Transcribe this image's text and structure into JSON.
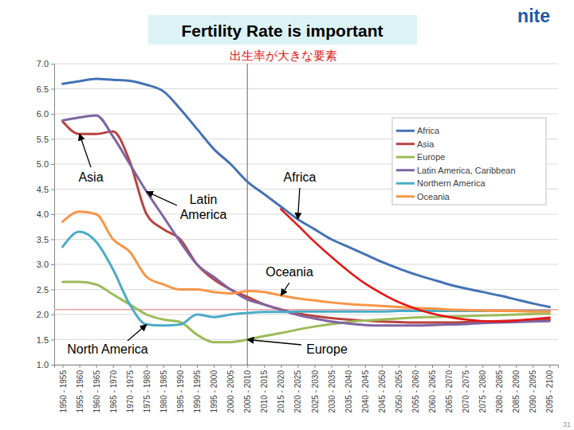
{
  "chart_data": {
    "type": "line",
    "title": "Fertility Rate is important",
    "subtitle": "出生率が大きな要素",
    "categories": [
      "1950 - 1955",
      "1955 - 1960",
      "1960 - 1965",
      "1965 - 1970",
      "1970 - 1975",
      "1975 - 1980",
      "1980 - 1985",
      "1985 - 1990",
      "1990 - 1995",
      "1995 - 2000",
      "2000 - 2005",
      "2005 - 2010",
      "2010 - 2015",
      "2015 - 2020",
      "2020 - 2025",
      "2025 - 2030",
      "2030 - 2035",
      "2035 - 2040",
      "2040 - 2045",
      "2045 - 2050",
      "2050 - 2055",
      "2055 - 2060",
      "2060 - 2065",
      "2065 - 2070",
      "2070 - 2075",
      "2075 - 2080",
      "2080 - 2085",
      "2085 - 2090",
      "2090 - 2095",
      "2095 - 2100"
    ],
    "series": [
      {
        "name": "Africa",
        "color": "#4472b4",
        "values": [
          6.6,
          6.65,
          6.7,
          6.68,
          6.66,
          6.58,
          6.45,
          6.1,
          5.7,
          5.3,
          5.0,
          4.65,
          4.4,
          4.15,
          3.9,
          3.7,
          3.5,
          3.35,
          3.2,
          3.05,
          2.92,
          2.8,
          2.7,
          2.6,
          2.52,
          2.45,
          2.38,
          2.3,
          2.22,
          2.15
        ]
      },
      {
        "name": "Asia",
        "color": "#b8433f",
        "values": [
          5.85,
          5.6,
          5.6,
          5.65,
          5.05,
          4.0,
          3.7,
          3.5,
          3.0,
          2.7,
          2.5,
          2.35,
          2.2,
          2.1,
          2.02,
          1.97,
          1.93,
          1.9,
          1.88,
          1.86,
          1.85,
          1.84,
          1.84,
          1.84,
          1.85,
          1.86,
          1.87,
          1.88,
          1.89,
          1.9
        ]
      },
      {
        "name": "Europe",
        "color": "#9bbb59",
        "values": [
          2.65,
          2.65,
          2.6,
          2.4,
          2.2,
          2.0,
          1.9,
          1.85,
          1.6,
          1.45,
          1.45,
          1.5,
          1.57,
          1.63,
          1.7,
          1.76,
          1.81,
          1.85,
          1.88,
          1.9,
          1.92,
          1.94,
          1.95,
          1.96,
          1.97,
          1.98,
          1.99,
          2.0,
          2.01,
          2.02
        ]
      },
      {
        "name": "Latin America, Caribbean",
        "color": "#8064a2",
        "values": [
          5.87,
          5.93,
          5.97,
          5.55,
          5.0,
          4.45,
          3.95,
          3.45,
          3.0,
          2.75,
          2.5,
          2.3,
          2.2,
          2.09,
          1.99,
          1.92,
          1.86,
          1.82,
          1.79,
          1.78,
          1.78,
          1.78,
          1.79,
          1.8,
          1.81,
          1.83,
          1.84,
          1.85,
          1.86,
          1.87
        ]
      },
      {
        "name": "Northern America",
        "color": "#4bacc6",
        "values": [
          3.35,
          3.65,
          3.45,
          2.9,
          2.2,
          1.8,
          1.78,
          1.8,
          2.0,
          1.95,
          2.0,
          2.03,
          2.05,
          2.05,
          2.06,
          2.06,
          2.06,
          2.06,
          2.06,
          2.06,
          2.07,
          2.07,
          2.07,
          2.07,
          2.07,
          2.07,
          2.07,
          2.07,
          2.07,
          2.07
        ]
      },
      {
        "name": "Oceania",
        "color": "#f79646",
        "values": [
          3.85,
          4.05,
          4.0,
          3.5,
          3.25,
          2.75,
          2.6,
          2.5,
          2.5,
          2.45,
          2.42,
          2.47,
          2.45,
          2.38,
          2.32,
          2.28,
          2.24,
          2.21,
          2.19,
          2.17,
          2.15,
          2.13,
          2.12,
          2.1,
          2.09,
          2.08,
          2.07,
          2.07,
          2.06,
          2.06
        ]
      },
      {
        "color": "#e81414",
        "values": [
          null,
          null,
          null,
          null,
          null,
          null,
          null,
          null,
          null,
          null,
          null,
          null,
          null,
          4.1,
          3.78,
          3.45,
          3.15,
          2.87,
          2.62,
          2.42,
          2.25,
          2.12,
          2.02,
          1.95,
          1.9,
          1.87,
          1.86,
          1.88,
          1.91,
          1.94
        ]
      }
    ],
    "ylim": [
      1,
      7
    ],
    "yticks": [
      {
        "value": 1,
        "label": "1.0"
      },
      1.5,
      {
        "value": 2,
        "label": "2.0"
      },
      2.5,
      {
        "value": 3,
        "label": "3.0"
      },
      3.5,
      {
        "value": 4,
        "label": "4.0"
      },
      4.5,
      {
        "value": 5,
        "label": "5.0"
      },
      5.5,
      {
        "value": 6,
        "label": "6.0"
      },
      6.5,
      {
        "value": 7,
        "label": "7.0"
      }
    ],
    "grid": true,
    "legend": "upper right",
    "reference_lines": [
      {
        "axis": "x",
        "value": "2005 - 2010",
        "color": "#808080"
      },
      {
        "axis": "y",
        "value": 2.1,
        "color": "#e6a0a0"
      }
    ],
    "annotations": [
      {
        "text": "Asia",
        "series": "Asia",
        "x": "1955 - 1960"
      },
      {
        "text": "Africa",
        "series": "Africa",
        "x": "2020 - 2025"
      },
      {
        "text": "Latin\nAmerica",
        "series": "Latin America, Caribbean",
        "x": "1975 - 1980"
      },
      {
        "text": "Oceania",
        "series": "Oceania",
        "x": "2015 - 2020"
      },
      {
        "text": "North America",
        "series": "Northern America",
        "x": "1975 - 1980"
      },
      {
        "text": "Europe",
        "series": "Europe",
        "x": "2005 - 2010"
      }
    ]
  },
  "slide": {
    "logo": "nite",
    "page_number": "31"
  }
}
